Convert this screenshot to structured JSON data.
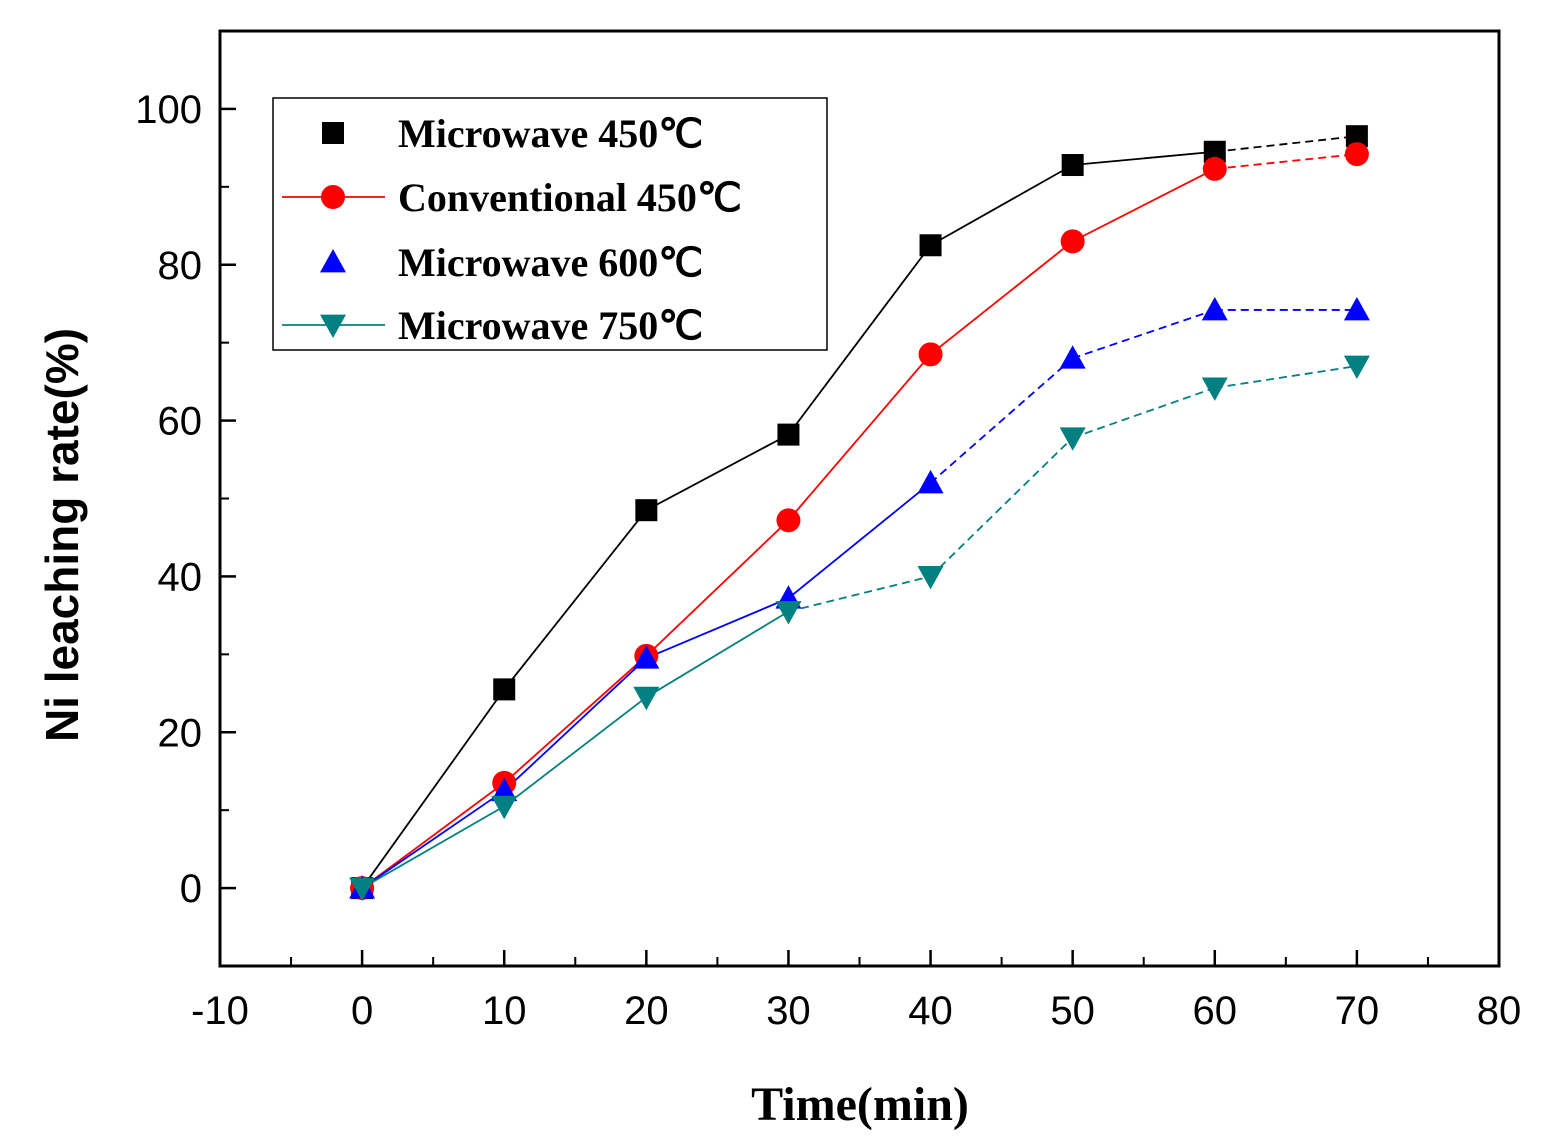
{
  "chart_data": {
    "type": "line",
    "title": "",
    "xlabel": "Time(min)",
    "ylabel": "Ni leaching rate(%)",
    "xlim": [
      -10,
      80
    ],
    "ylim": [
      -10,
      110
    ],
    "x_ticks": [
      -10,
      0,
      10,
      20,
      30,
      40,
      50,
      60,
      70,
      80
    ],
    "y_ticks": [
      0,
      20,
      40,
      60,
      80,
      100
    ],
    "grid": false,
    "legend_position": "top-left",
    "x": [
      0,
      10,
      20,
      30,
      40,
      50,
      60,
      70
    ],
    "series": [
      {
        "name": "Microwave 450℃",
        "marker": "square",
        "color": "#000000",
        "values": [
          0,
          25.5,
          48.5,
          58.2,
          82.5,
          92.8,
          94.5,
          96.5
        ]
      },
      {
        "name": "Conventional 450℃",
        "marker": "circle",
        "color": "#ff0000",
        "values": [
          0,
          13.5,
          29.8,
          47.2,
          68.5,
          83,
          92.3,
          94.2
        ]
      },
      {
        "name": "Microwave 600℃",
        "marker": "triangle-up",
        "color": "#0000ff",
        "values": [
          0,
          12.5,
          29.5,
          37.2,
          52,
          68,
          74.2,
          74.2
        ]
      },
      {
        "name": "Microwave 750℃",
        "marker": "triangle-down",
        "color": "#008080",
        "values": [
          0,
          10.5,
          24.5,
          35.5,
          40,
          57.8,
          64.2,
          67
        ]
      }
    ]
  }
}
